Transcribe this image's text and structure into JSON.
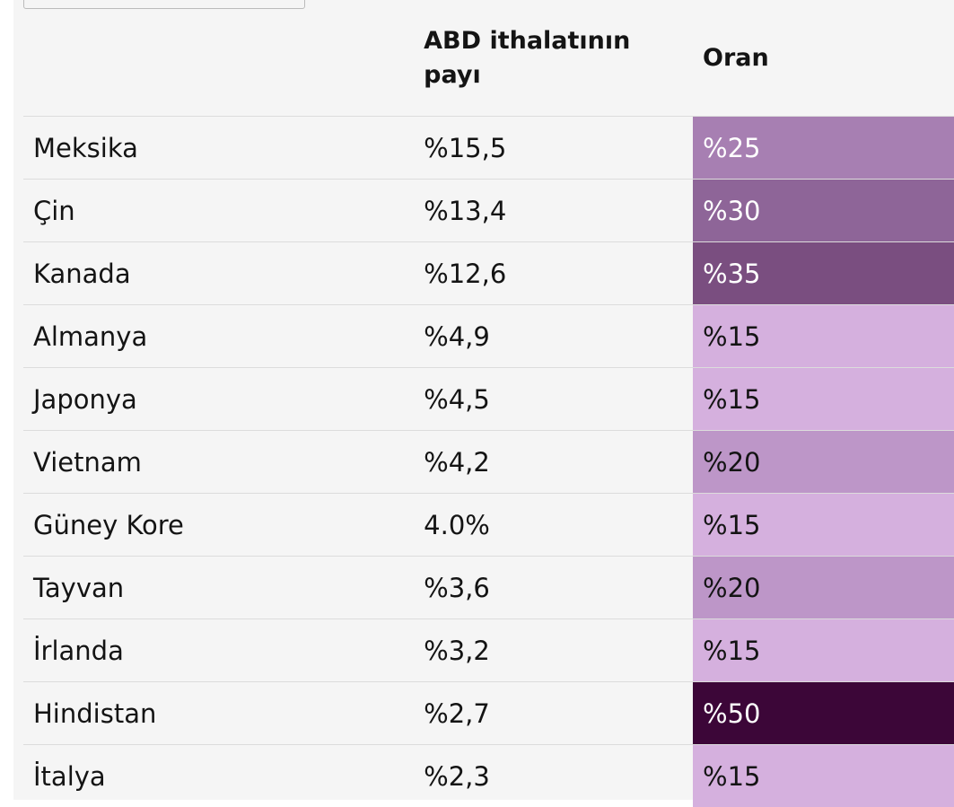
{
  "table": {
    "header": {
      "share": "ABD ithalatının payı",
      "rate": "Oran"
    },
    "rows": [
      {
        "country": "Meksika",
        "share": "%15,5",
        "rate": "%25",
        "color": "#a77fb2"
      },
      {
        "country": "Çin",
        "share": "%13,4",
        "rate": "%30",
        "color": "#8e6598"
      },
      {
        "country": "Kanada",
        "share": "%12,6",
        "rate": "%35",
        "color": "#7a4e80"
      },
      {
        "country": "Almanya",
        "share": "%4,9",
        "rate": "%15",
        "color": "#d5b0de"
      },
      {
        "country": "Japonya",
        "share": "%4,5",
        "rate": "%15",
        "color": "#d5b0de"
      },
      {
        "country": "Vietnam",
        "share": "%4,2",
        "rate": "%20",
        "color": "#bd96c8"
      },
      {
        "country": "Güney Kore",
        "share": "4.0%",
        "rate": "%15",
        "color": "#d5b0de"
      },
      {
        "country": "Tayvan",
        "share": "%3,6",
        "rate": "%20",
        "color": "#bd96c8"
      },
      {
        "country": "İrlanda",
        "share": "%3,2",
        "rate": "%15",
        "color": "#d5b0de"
      },
      {
        "country": "Hindistan",
        "share": "%2,7",
        "rate": "%50",
        "color": "#3c0638"
      },
      {
        "country": "İtalya",
        "share": "%2,3",
        "rate": "%15",
        "color": "#d5b0de"
      }
    ]
  }
}
